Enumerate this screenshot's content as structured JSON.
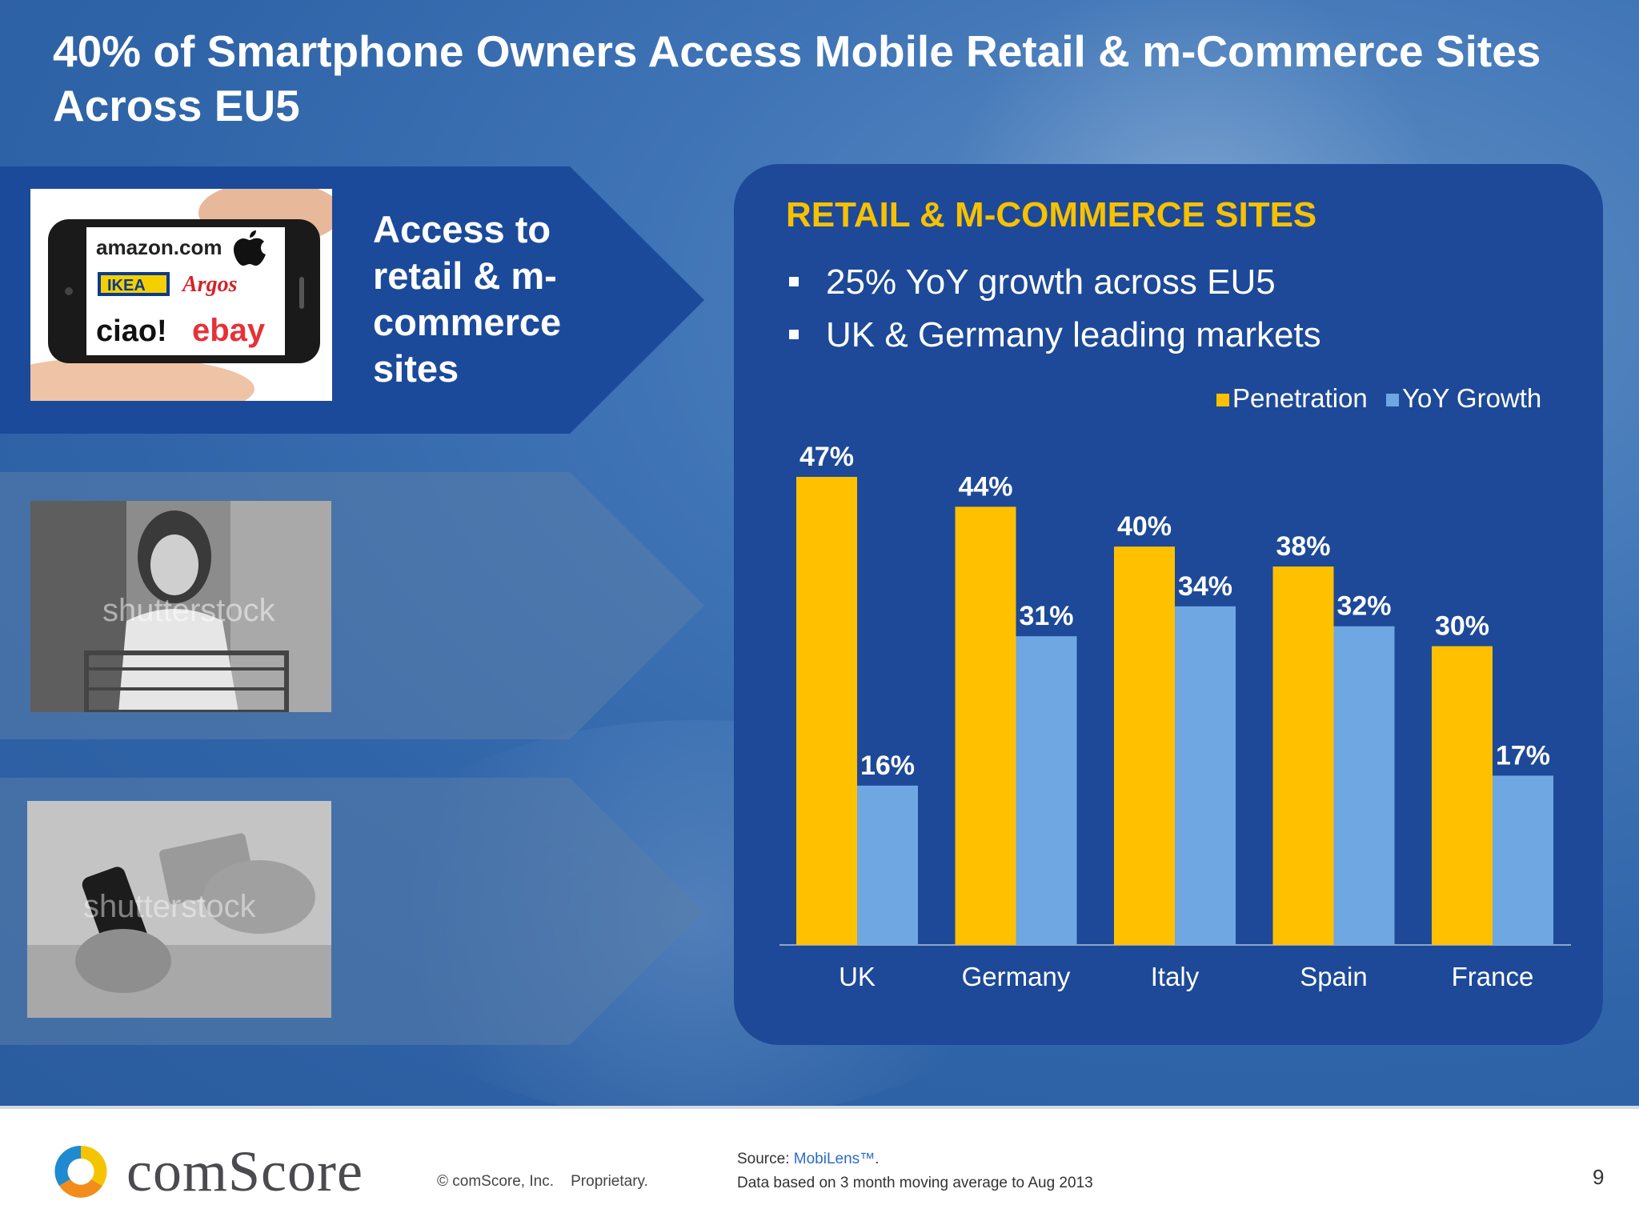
{
  "slide": {
    "title": "40% of Smartphone Owners Access Mobile Retail & m-Commerce Sites Across EU5",
    "access_text": "Access to retail & m-commerce sites",
    "page_number": "9"
  },
  "photos": {
    "phone_logos": [
      "amazon.com",
      "IKEA",
      "Argos",
      "ciao!",
      "ebay"
    ],
    "watermark": "shutterstock"
  },
  "panel": {
    "title": "RETAIL & M-COMMERCE SITES",
    "bullets": [
      "25% YoY growth across EU5",
      "UK & Germany leading markets"
    ]
  },
  "footer": {
    "logo": "comScore",
    "copyright": "© comScore, Inc.",
    "proprietary": "Proprietary.",
    "source_label": "Source: ",
    "source_link": "MobiLens™",
    "source_end": ".",
    "data_note": "Data based on 3 month moving average to Aug 2013"
  },
  "colors": {
    "penetration": "#ffc000",
    "yoy_growth": "#6fa7e2",
    "panel_title": "#f7c100",
    "panel_bg": "#1d4998"
  },
  "chart_data": {
    "type": "bar",
    "categories": [
      "UK",
      "Germany",
      "Italy",
      "Spain",
      "France"
    ],
    "series": [
      {
        "name": "Penetration",
        "values": [
          47,
          44,
          40,
          38,
          30
        ],
        "labels": [
          "47%",
          "44%",
          "40%",
          "38%",
          "30%"
        ]
      },
      {
        "name": "YoY Growth",
        "values": [
          16,
          31,
          34,
          32,
          17
        ],
        "labels": [
          "16%",
          "31%",
          "34%",
          "32%",
          "17%"
        ]
      }
    ],
    "ylim": [
      0,
      47
    ],
    "legend": "top-right",
    "grid": false
  }
}
